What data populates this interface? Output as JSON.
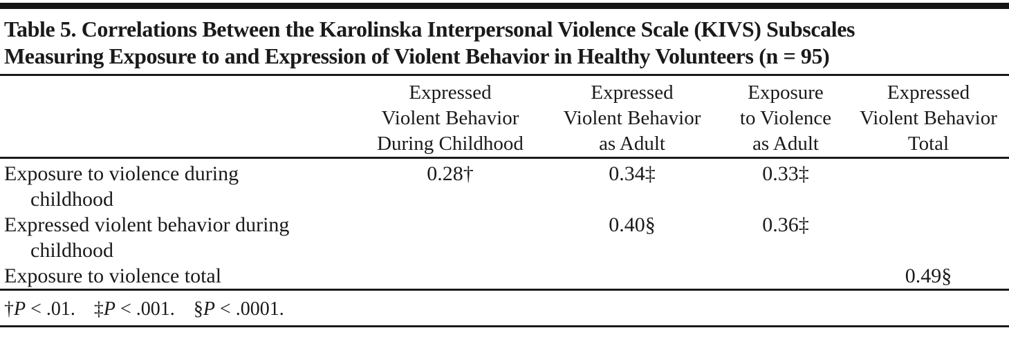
{
  "table": {
    "title_line1": "Table 5. Correlations Between the Karolinska Interpersonal Violence Scale (KIVS) Subscales",
    "title_line2": "Measuring Exposure to and Expression of Violent Behavior in Healthy Volunteers (n = 95)",
    "columns": [
      {
        "line1": "Expressed",
        "line2": "Violent Behavior",
        "line3": "During Childhood"
      },
      {
        "line1": "Expressed",
        "line2": "Violent Behavior",
        "line3": "as Adult"
      },
      {
        "line1": "Exposure",
        "line2": "to Violence",
        "line3": "as Adult"
      },
      {
        "line1": "Expressed",
        "line2": "Violent Behavior",
        "line3": "Total"
      }
    ],
    "rows": [
      {
        "label_line1": "Exposure to violence during",
        "label_line2": "childhood",
        "values": [
          "0.28†",
          "0.34‡",
          "0.33‡",
          ""
        ]
      },
      {
        "label_line1": "Expressed violent behavior during",
        "label_line2": "childhood",
        "values": [
          "",
          "0.40§",
          "0.36‡",
          ""
        ]
      },
      {
        "label_line1": "Exposure to violence total",
        "values": [
          "",
          "",
          "",
          "0.49§"
        ]
      }
    ],
    "footnotes": [
      {
        "symbol": "†",
        "p_label": "P",
        "rest": " < .01."
      },
      {
        "symbol": "‡",
        "p_label": "P",
        "rest": " < .001."
      },
      {
        "symbol": "§",
        "p_label": "P",
        "rest": " < .0001."
      }
    ],
    "text_color": "#1a1a1a",
    "background_color": "#ffffff"
  }
}
